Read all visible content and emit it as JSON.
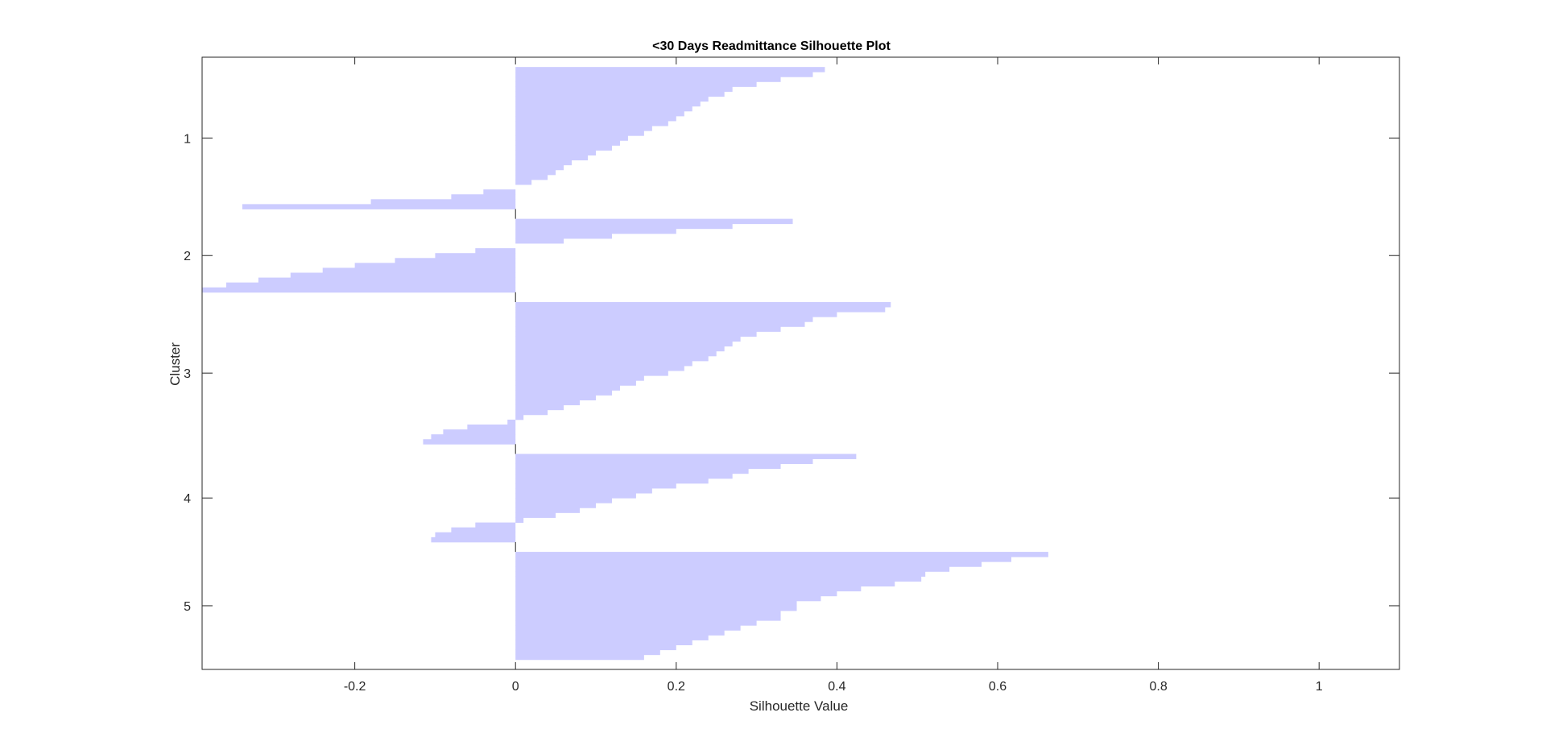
{
  "chart_data": {
    "type": "bar",
    "orientation": "horizontal",
    "title": "<30 Days Readmittance Silhouette Plot",
    "xlabel": "Silhouette Value",
    "ylabel": "Cluster",
    "xlim": [
      -0.39,
      1.1
    ],
    "xticks": [
      -0.2,
      0,
      0.2,
      0.4,
      0.6,
      0.8,
      1
    ],
    "xtick_labels": [
      "-0.2",
      "0",
      "0.2",
      "0.4",
      "0.6",
      "0.8",
      "1"
    ],
    "categories": [
      "1",
      "2",
      "3",
      "4",
      "5"
    ],
    "grid": false,
    "bar_color": "#ccccff",
    "axis_color": "#262626",
    "clusters": [
      {
        "name": "1",
        "values": [
          0.385,
          0.37,
          0.33,
          0.3,
          0.27,
          0.26,
          0.24,
          0.23,
          0.22,
          0.21,
          0.2,
          0.19,
          0.17,
          0.16,
          0.14,
          0.13,
          0.12,
          0.1,
          0.09,
          0.07,
          0.06,
          0.05,
          0.04,
          0.02,
          0.0,
          -0.04,
          -0.08,
          -0.18,
          -0.34
        ]
      },
      {
        "name": "2",
        "values": [
          0.345,
          0.27,
          0.2,
          0.12,
          0.06,
          0.0,
          -0.05,
          -0.1,
          -0.15,
          -0.2,
          -0.24,
          -0.28,
          -0.32,
          -0.36,
          -0.39
        ]
      },
      {
        "name": "3",
        "values": [
          0.467,
          0.46,
          0.4,
          0.37,
          0.36,
          0.33,
          0.3,
          0.28,
          0.27,
          0.26,
          0.25,
          0.24,
          0.22,
          0.21,
          0.19,
          0.16,
          0.15,
          0.13,
          0.12,
          0.1,
          0.08,
          0.06,
          0.04,
          0.01,
          -0.01,
          -0.06,
          -0.09,
          -0.105,
          -0.115
        ]
      },
      {
        "name": "4",
        "values": [
          0.424,
          0.37,
          0.33,
          0.29,
          0.27,
          0.24,
          0.2,
          0.17,
          0.15,
          0.12,
          0.1,
          0.08,
          0.05,
          0.01,
          -0.05,
          -0.08,
          -0.1,
          -0.105
        ]
      },
      {
        "name": "5",
        "values": [
          0.663,
          0.617,
          0.58,
          0.54,
          0.51,
          0.505,
          0.472,
          0.43,
          0.4,
          0.38,
          0.35,
          0.35,
          0.33,
          0.33,
          0.3,
          0.28,
          0.26,
          0.24,
          0.22,
          0.2,
          0.18,
          0.16
        ]
      }
    ]
  }
}
